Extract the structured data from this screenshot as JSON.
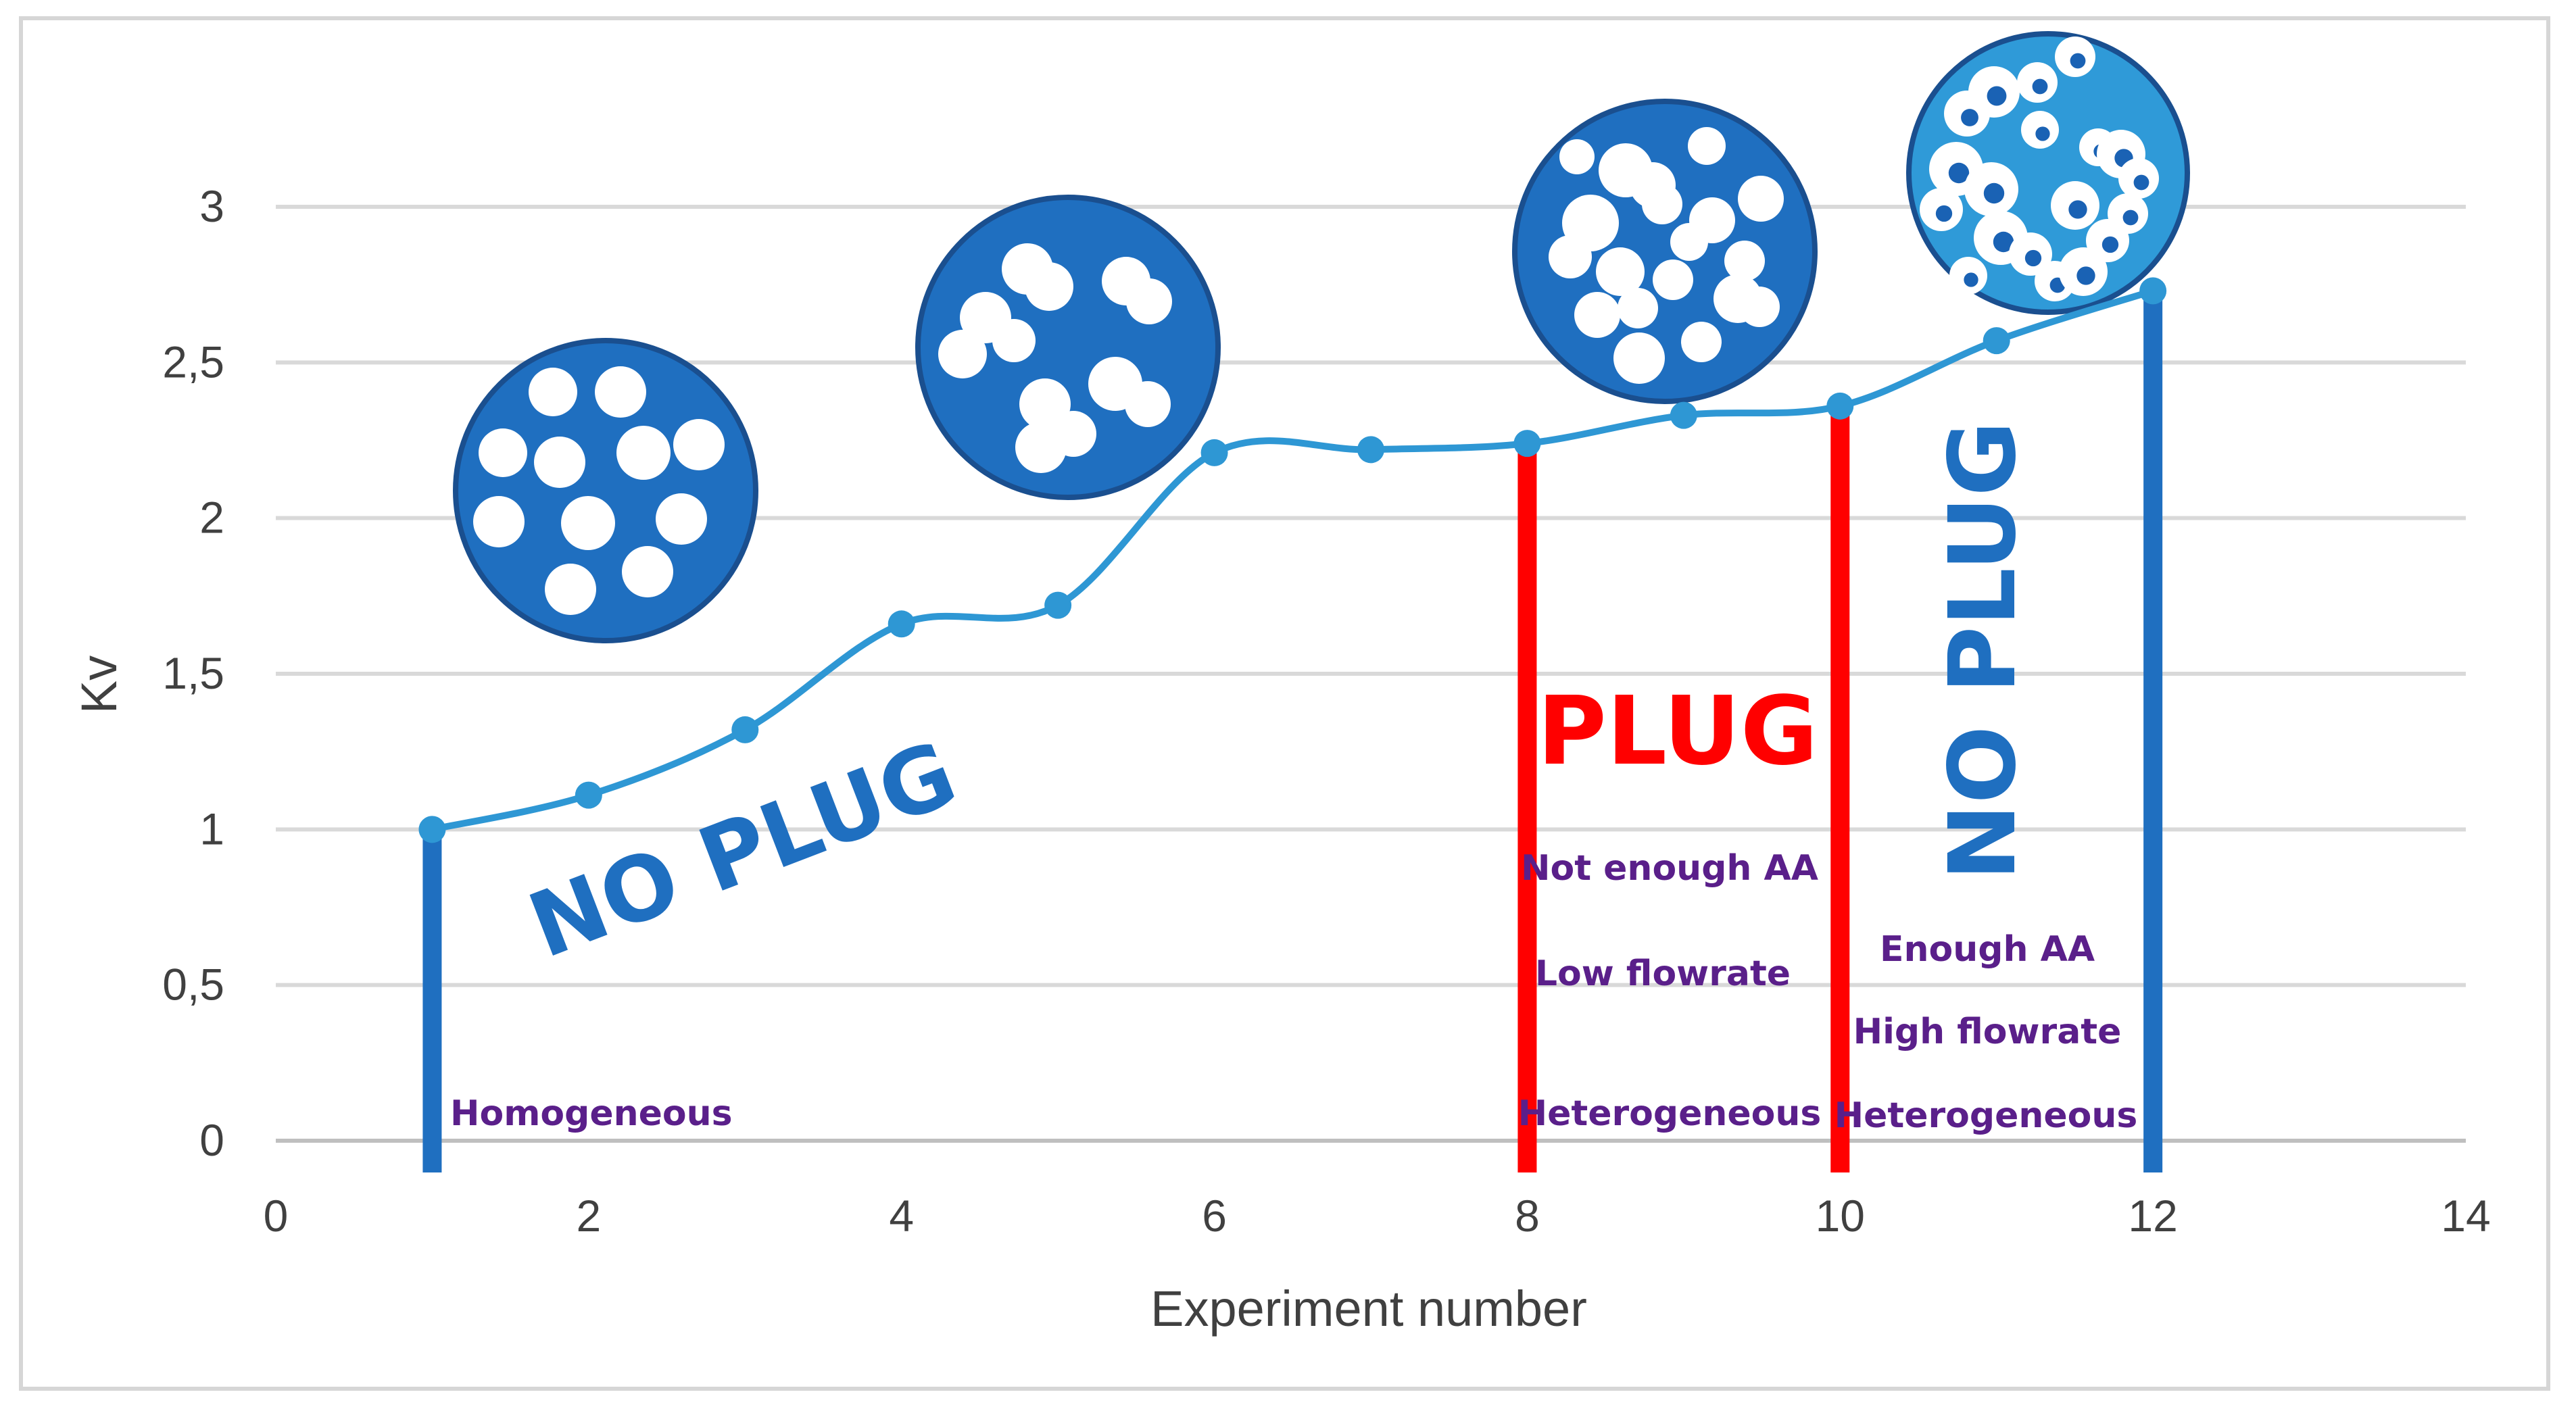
{
  "chart_data": {
    "type": "line",
    "title": "",
    "xlabel": "Experiment number",
    "ylabel": "Kv",
    "xlim": [
      0,
      14
    ],
    "ylim": [
      0,
      3
    ],
    "x_ticks": [
      "0",
      "2",
      "4",
      "6",
      "8",
      "10",
      "12",
      "14"
    ],
    "y_ticks": [
      "0",
      "0,5",
      "1",
      "1,5",
      "2",
      "2,5",
      "3"
    ],
    "grid": "horizontal",
    "series": [
      {
        "name": "Kv",
        "color": "#2e97d4",
        "smooth": true,
        "x": [
          1,
          2,
          3,
          4,
          5,
          6,
          7,
          8,
          9,
          10,
          11,
          12
        ],
        "y": [
          1.0,
          1.11,
          1.32,
          1.66,
          1.72,
          2.21,
          2.22,
          2.24,
          2.33,
          2.36,
          2.57,
          2.73
        ]
      }
    ],
    "region_boundaries": [
      {
        "x": 1,
        "color": "#1f6fc0"
      },
      {
        "x": 8,
        "color": "#ff0000"
      },
      {
        "x": 10,
        "color": "#ff0000"
      },
      {
        "x": 12,
        "color": "#1f6fc0"
      }
    ],
    "annotations": {
      "no_plug_left": {
        "text": "NO PLUG",
        "color": "#1f6fc0"
      },
      "plug": {
        "text": "PLUG",
        "color": "#ff0000"
      },
      "no_plug_right": {
        "text": "NO PLUG",
        "color": "#1f6fc0"
      },
      "homogeneous": "Homogeneous",
      "not_enough_aa": "Not enough AA",
      "low_flowrate": "Low flowrate",
      "heterogeneous_plug": "Heterogeneous",
      "enough_aa": "Enough AA",
      "high_flowrate": "High flowrate",
      "heterogeneous_right": "Heterogeneous"
    },
    "illustrations": [
      {
        "name": "dispersed-particles-icon",
        "fill": "#1f6fc0"
      },
      {
        "name": "small-clusters-icon",
        "fill": "#1f6fc0"
      },
      {
        "name": "dense-clusters-icon",
        "fill": "#1f6fc0"
      },
      {
        "name": "ring-clusters-icon",
        "fill": "#2f9ad8"
      }
    ]
  }
}
